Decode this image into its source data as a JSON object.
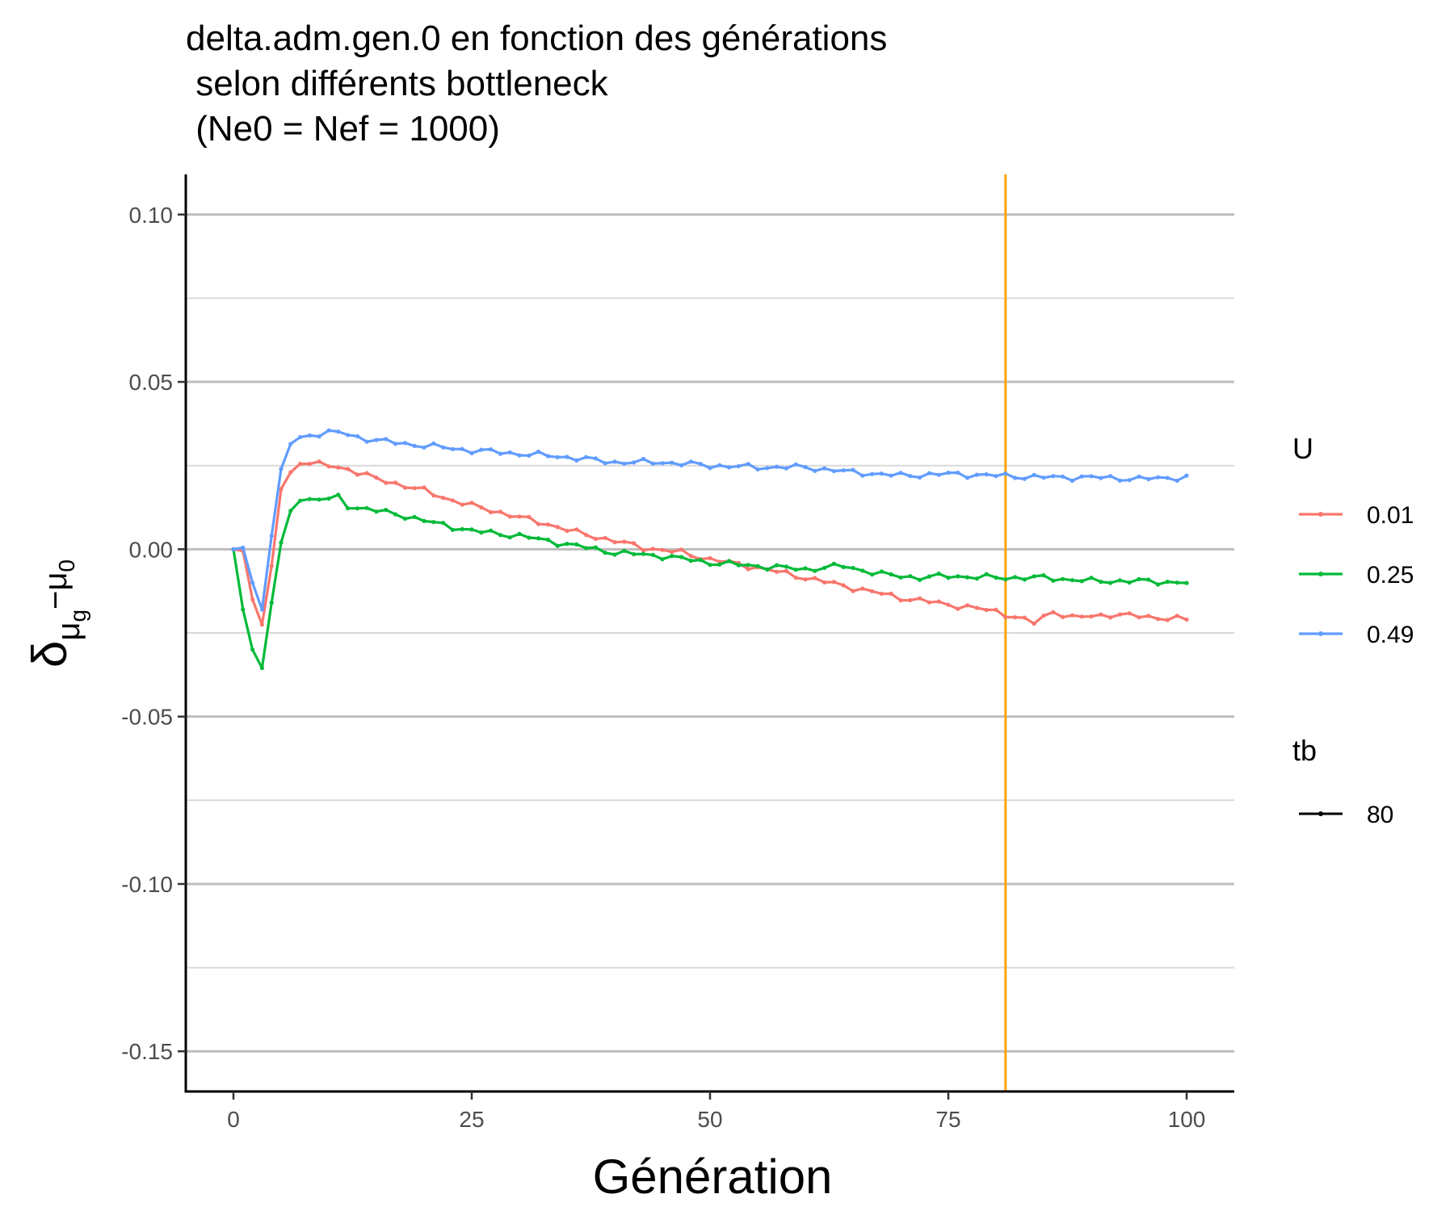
{
  "chart_data": {
    "type": "line",
    "title_lines": [
      "delta.adm.gen.0 en fonction des générations",
      " selon différents bottleneck",
      " (Ne0 = Nef = 1000)"
    ],
    "xlabel": "Génération",
    "ylabel": {
      "main": "δ",
      "sub1": "μ",
      "subsub": "g",
      "minus": "−μ",
      "sub2": "0"
    },
    "xlim": [
      -5,
      105
    ],
    "ylim": [
      -0.162,
      0.112
    ],
    "x_ticks": [
      0,
      25,
      50,
      75,
      100
    ],
    "x_tick_labels": [
      "0",
      "25",
      "50",
      "75",
      "100"
    ],
    "y_ticks": [
      0.1,
      0.05,
      0.0,
      -0.05,
      -0.1,
      -0.15
    ],
    "y_tick_labels": [
      "0.10",
      "0.05",
      "0.00",
      "-0.05",
      "-0.10",
      "-0.15"
    ],
    "y_minor_gridlines": [
      0.075,
      0.025,
      -0.025,
      -0.075,
      -0.125
    ],
    "grid": "horizontal",
    "vline": {
      "x": 81,
      "color": "#FFA500"
    },
    "legend_position": "right",
    "legend_color_title": "U",
    "legend_linetype_title": "tb",
    "legend_linetype_entries": [
      "80"
    ],
    "series": [
      {
        "name": "0.01",
        "color": "#F8766D",
        "anchors": [
          [
            0,
            0
          ],
          [
            1,
            -0.0005
          ],
          [
            2,
            -0.015
          ],
          [
            3,
            -0.0225
          ],
          [
            4,
            -0.005
          ],
          [
            5,
            0.018
          ],
          [
            6,
            0.023
          ],
          [
            7,
            0.0255
          ],
          [
            8,
            0.0255
          ],
          [
            10,
            0.025
          ],
          [
            12,
            0.024
          ],
          [
            15,
            0.021
          ],
          [
            18,
            0.019
          ],
          [
            20,
            0.0175
          ],
          [
            22,
            0.0155
          ],
          [
            25,
            0.013
          ],
          [
            28,
            0.011
          ],
          [
            30,
            0.0095
          ],
          [
            33,
            0.0075
          ],
          [
            36,
            0.005
          ],
          [
            40,
            0.0025
          ],
          [
            43,
            0.0005
          ],
          [
            47,
            -0.001
          ],
          [
            50,
            -0.003
          ],
          [
            55,
            -0.0055
          ],
          [
            60,
            -0.0085
          ],
          [
            65,
            -0.0115
          ],
          [
            70,
            -0.0145
          ],
          [
            75,
            -0.0165
          ],
          [
            80,
            -0.0185
          ],
          [
            84,
            -0.022
          ],
          [
            86,
            -0.0185
          ],
          [
            88,
            -0.0205
          ],
          [
            92,
            -0.0195
          ],
          [
            95,
            -0.02
          ],
          [
            100,
            -0.021
          ]
        ]
      },
      {
        "name": "0.25",
        "color": "#00BA38",
        "anchors": [
          [
            0,
            0
          ],
          [
            1,
            -0.018
          ],
          [
            2,
            -0.03
          ],
          [
            3,
            -0.0355
          ],
          [
            4,
            -0.016
          ],
          [
            5,
            0.002
          ],
          [
            6,
            0.0115
          ],
          [
            7,
            0.0145
          ],
          [
            8,
            0.015
          ],
          [
            10,
            0.015
          ],
          [
            11,
            0.0155
          ],
          [
            12,
            0.013
          ],
          [
            15,
            0.0115
          ],
          [
            18,
            0.01
          ],
          [
            20,
            0.0085
          ],
          [
            25,
            0.0055
          ],
          [
            30,
            0.004
          ],
          [
            33,
            0.0025
          ],
          [
            36,
            0.001
          ],
          [
            40,
            -0.001
          ],
          [
            45,
            -0.002
          ],
          [
            50,
            -0.004
          ],
          [
            55,
            -0.005
          ],
          [
            60,
            -0.006
          ],
          [
            64,
            -0.005
          ],
          [
            68,
            -0.0075
          ],
          [
            72,
            -0.0085
          ],
          [
            75,
            -0.008
          ],
          [
            80,
            -0.0085
          ],
          [
            85,
            -0.0085
          ],
          [
            90,
            -0.0095
          ],
          [
            95,
            -0.0095
          ],
          [
            100,
            -0.01
          ]
        ]
      },
      {
        "name": "0.49",
        "color": "#619CFF",
        "anchors": [
          [
            0,
            0
          ],
          [
            1,
            0.0005
          ],
          [
            2,
            -0.01
          ],
          [
            3,
            -0.018
          ],
          [
            4,
            0.004
          ],
          [
            5,
            0.024
          ],
          [
            6,
            0.0315
          ],
          [
            7,
            0.0335
          ],
          [
            9,
            0.0345
          ],
          [
            11,
            0.035
          ],
          [
            13,
            0.0335
          ],
          [
            15,
            0.0325
          ],
          [
            18,
            0.0315
          ],
          [
            20,
            0.031
          ],
          [
            25,
            0.0295
          ],
          [
            28,
            0.029
          ],
          [
            30,
            0.0285
          ],
          [
            33,
            0.028
          ],
          [
            35,
            0.0275
          ],
          [
            40,
            0.026
          ],
          [
            45,
            0.026
          ],
          [
            50,
            0.025
          ],
          [
            55,
            0.0245
          ],
          [
            60,
            0.0245
          ],
          [
            65,
            0.023
          ],
          [
            70,
            0.022
          ],
          [
            75,
            0.0225
          ],
          [
            80,
            0.022
          ],
          [
            85,
            0.0215
          ],
          [
            90,
            0.0215
          ],
          [
            95,
            0.021
          ],
          [
            100,
            0.0215
          ]
        ]
      }
    ]
  }
}
